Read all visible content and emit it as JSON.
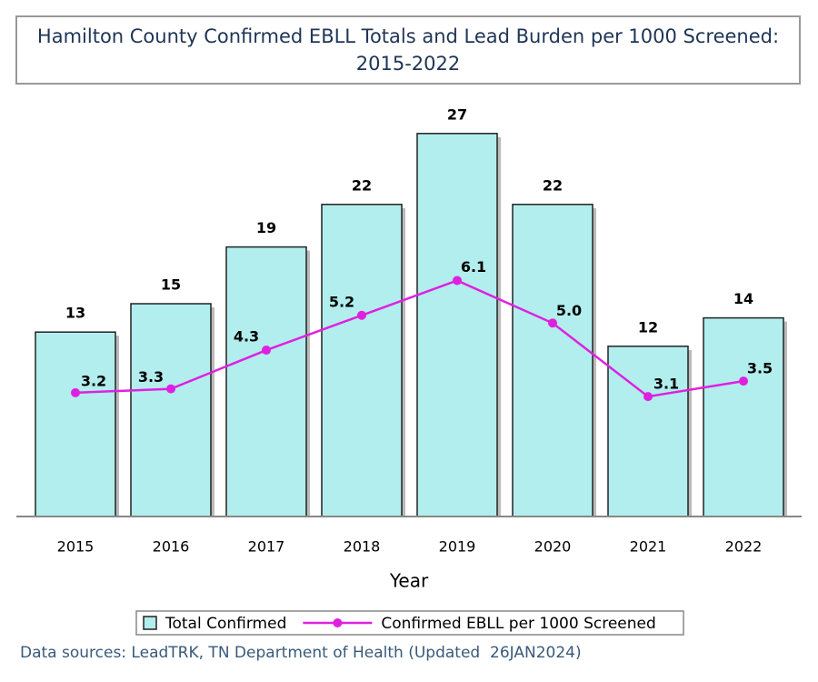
{
  "chart_data": {
    "type": "bar",
    "title": "Hamilton County Confirmed EBLL Totals and Lead Burden per 1000 Screened: 2015-2022",
    "x_label": "Year",
    "categories": [
      "2015",
      "2016",
      "2017",
      "2018",
      "2019",
      "2020",
      "2021",
      "2022"
    ],
    "series": [
      {
        "name": "Total Confirmed",
        "type": "bar",
        "color": "#b2eeee",
        "values": [
          13,
          15,
          19,
          22,
          27,
          22,
          12,
          14
        ]
      },
      {
        "name": "Confirmed EBLL per 1000 Screened",
        "type": "line",
        "axis": "y2",
        "color": "#e020e0",
        "values": [
          3.2,
          3.3,
          4.3,
          5.2,
          6.1,
          5.0,
          3.1,
          3.5
        ],
        "value_labels": [
          "3.2",
          "3.3",
          "4.3",
          "5.2",
          "6.1",
          "5.0",
          "3.1",
          "3.5"
        ]
      }
    ],
    "ylim": [
      0,
      30
    ],
    "y2lim": [
      0,
      11
    ],
    "legend": "bottom"
  },
  "source": "Data sources: LeadTRK, TN Department of Health (Updated  26JAN2024)"
}
